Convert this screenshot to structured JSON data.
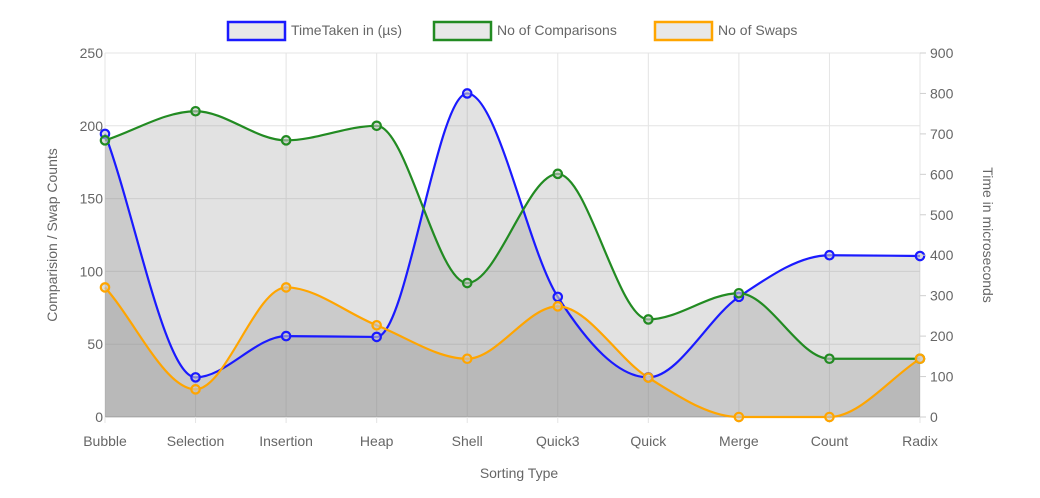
{
  "chart_data": {
    "type": "line",
    "title": "",
    "categories": [
      "Bubble",
      "Selection",
      "Insertion",
      "Heap",
      "Shell",
      "Quick3",
      "Quick",
      "Merge",
      "Count",
      "Radix"
    ],
    "xlabel": "Sorting Type",
    "y_left": {
      "label": "Comparision / Swap Counts",
      "min": 0,
      "max": 250,
      "ticks": [
        0,
        50,
        100,
        150,
        200,
        250
      ]
    },
    "y_right": {
      "label": "Time in microseconds",
      "min": 0,
      "max": 900,
      "ticks": [
        0,
        100,
        200,
        300,
        400,
        500,
        600,
        700,
        800,
        900
      ]
    },
    "grid": true,
    "legend_position": "top",
    "series": [
      {
        "name": "TimeTaken in (µs)",
        "axis": "right",
        "color": "#1a1aff",
        "values": [
          700,
          98,
          200,
          198,
          800,
          297,
          98,
          297,
          400,
          398
        ]
      },
      {
        "name": "No of Comparisons",
        "axis": "left",
        "color": "#228b22",
        "values": [
          190,
          210,
          190,
          200,
          92,
          167,
          67,
          85,
          40,
          40
        ]
      },
      {
        "name": "No of Swaps",
        "axis": "left",
        "color": "#ffa500",
        "values": [
          89,
          19,
          89,
          63,
          40,
          76,
          27,
          0,
          0,
          40
        ]
      }
    ]
  }
}
